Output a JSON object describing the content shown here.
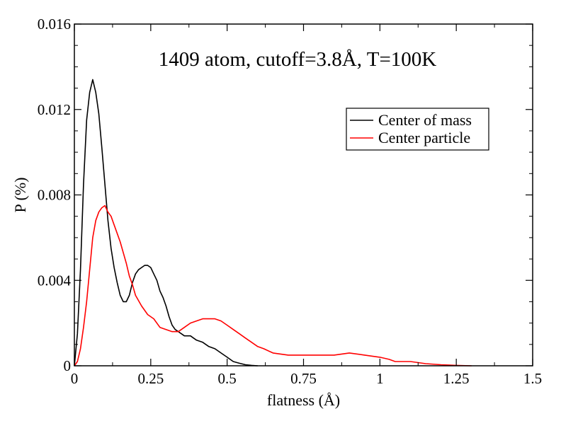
{
  "chart_data": {
    "type": "line",
    "title": "1409 atom, cutoff=3.8Å, T=100K",
    "xlabel": "flatness (Å)",
    "ylabel": "P (%)",
    "xlim": [
      0,
      1.5
    ],
    "ylim": [
      0,
      0.016
    ],
    "x_ticks": [
      0,
      0.25,
      0.5,
      0.75,
      1,
      1.25,
      1.5
    ],
    "x_tick_labels": [
      "0",
      "0.25",
      "0.5",
      "0.75",
      "1",
      "1.25",
      "1.5"
    ],
    "y_ticks": [
      0,
      0.004,
      0.008,
      0.012,
      0.016
    ],
    "y_tick_labels": [
      "0",
      "0.004",
      "0.008",
      "0.012",
      "0.016"
    ],
    "grid": false,
    "legend_position": "top-right",
    "series": [
      {
        "name": "Center of mass",
        "color": "#000000",
        "x": [
          0,
          0.01,
          0.02,
          0.03,
          0.04,
          0.05,
          0.06,
          0.07,
          0.08,
          0.09,
          0.1,
          0.11,
          0.12,
          0.13,
          0.14,
          0.15,
          0.16,
          0.17,
          0.18,
          0.19,
          0.2,
          0.21,
          0.22,
          0.23,
          0.24,
          0.25,
          0.26,
          0.27,
          0.28,
          0.29,
          0.3,
          0.31,
          0.32,
          0.33,
          0.34,
          0.35,
          0.36,
          0.37,
          0.38,
          0.39,
          0.4,
          0.42,
          0.44,
          0.46,
          0.48,
          0.5,
          0.52,
          0.54,
          0.56,
          0.58,
          0.6
        ],
        "y": [
          0,
          0.0015,
          0.0045,
          0.0085,
          0.0115,
          0.0128,
          0.0134,
          0.0128,
          0.0118,
          0.0102,
          0.0085,
          0.0068,
          0.0055,
          0.0046,
          0.0039,
          0.0033,
          0.003,
          0.003,
          0.0033,
          0.0039,
          0.0043,
          0.0045,
          0.0046,
          0.0047,
          0.0047,
          0.0046,
          0.0043,
          0.004,
          0.0035,
          0.0032,
          0.0028,
          0.0023,
          0.0019,
          0.0017,
          0.0016,
          0.0015,
          0.0014,
          0.0014,
          0.0014,
          0.0013,
          0.0012,
          0.0011,
          0.0009,
          0.0008,
          0.0006,
          0.0004,
          0.0002,
          0.00012,
          5e-05,
          2e-05,
          0
        ]
      },
      {
        "name": "Center particle",
        "color": "#ff0000",
        "x": [
          0,
          0.01,
          0.02,
          0.03,
          0.04,
          0.05,
          0.06,
          0.07,
          0.08,
          0.09,
          0.1,
          0.11,
          0.12,
          0.13,
          0.14,
          0.15,
          0.16,
          0.17,
          0.18,
          0.19,
          0.2,
          0.22,
          0.24,
          0.26,
          0.28,
          0.3,
          0.32,
          0.34,
          0.36,
          0.38,
          0.4,
          0.42,
          0.44,
          0.46,
          0.48,
          0.5,
          0.52,
          0.54,
          0.56,
          0.58,
          0.6,
          0.62,
          0.65,
          0.7,
          0.75,
          0.8,
          0.85,
          0.9,
          0.95,
          1,
          1.03,
          1.05,
          1.1,
          1.15,
          1.2,
          1.25,
          1.3
        ],
        "y": [
          0,
          0.0002,
          0.0008,
          0.0018,
          0.003,
          0.0045,
          0.006,
          0.0068,
          0.0072,
          0.0074,
          0.0075,
          0.0072,
          0.007,
          0.0066,
          0.0062,
          0.0058,
          0.0053,
          0.0048,
          0.0042,
          0.0038,
          0.0033,
          0.0028,
          0.0024,
          0.0022,
          0.0018,
          0.0017,
          0.0016,
          0.0016,
          0.0018,
          0.002,
          0.0021,
          0.0022,
          0.0022,
          0.0022,
          0.0021,
          0.0019,
          0.0017,
          0.0015,
          0.0013,
          0.0011,
          0.0009,
          0.0008,
          0.0006,
          0.0005,
          0.0005,
          0.0005,
          0.0005,
          0.0006,
          0.0005,
          0.0004,
          0.0003,
          0.0002,
          0.0002,
          0.0001,
          5e-05,
          2e-05,
          0
        ]
      }
    ]
  }
}
